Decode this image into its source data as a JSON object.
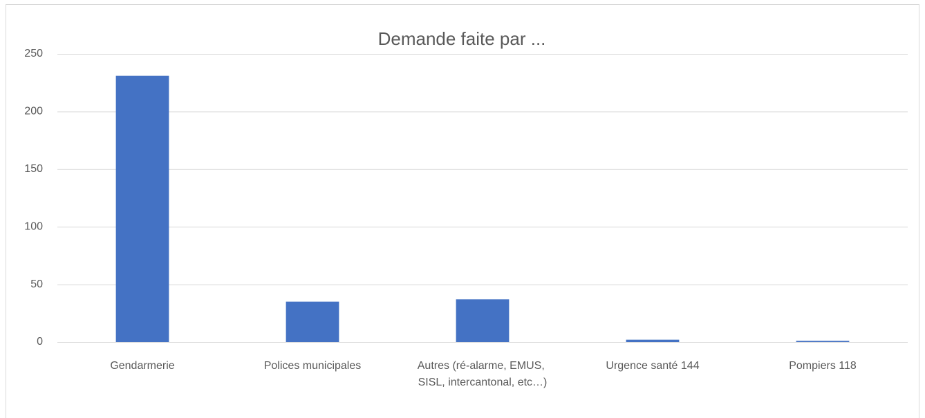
{
  "chart_data": {
    "type": "bar",
    "title": "Demande faite par ...",
    "categories": [
      "Gendarmerie",
      "Polices municipales",
      "Autres (ré-alarme, EMUS, SISL, intercantonal, etc…)",
      "Urgence santé 144",
      "Pompiers 118"
    ],
    "values": [
      231,
      35,
      37,
      2,
      1
    ],
    "color": "#4472c4",
    "ylim": [
      0,
      250
    ],
    "yticks": [
      0,
      50,
      100,
      150,
      200,
      250
    ],
    "grid": true
  }
}
